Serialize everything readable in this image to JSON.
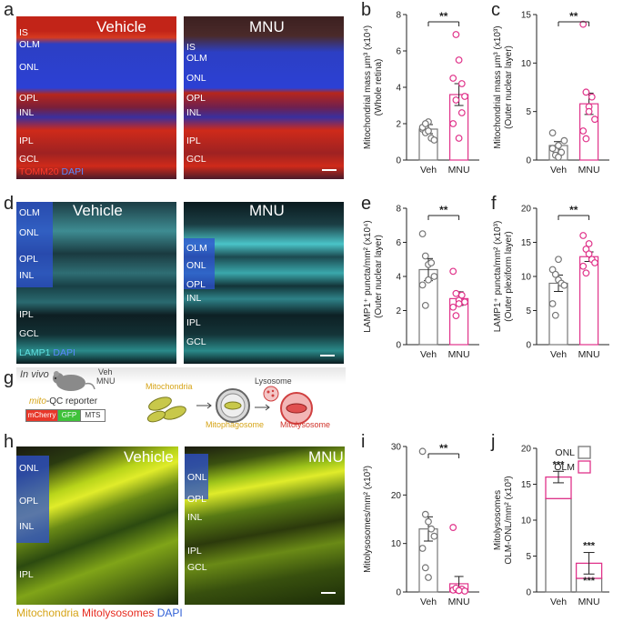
{
  "panels": {
    "a": {
      "label": "a",
      "left_title": "Vehicle",
      "right_title": "MNU",
      "left_layers": [
        "IS",
        "OLM",
        "ONL",
        "OPL",
        "INL",
        "IPL",
        "GCL"
      ],
      "right_layers": [
        "IS",
        "OLM",
        "ONL",
        "OPL",
        "INL",
        "IPL",
        "GCL"
      ],
      "stain_1": "TOMM20",
      "stain_2": "DAPI"
    },
    "b": {
      "label": "b"
    },
    "c": {
      "label": "c"
    },
    "d": {
      "label": "d",
      "left_title": "Vehicle",
      "right_title": "MNU",
      "left_layers": [
        "OLM",
        "ONL",
        "OPL",
        "INL",
        "IPL",
        "GCL"
      ],
      "right_layers": [
        "OLM",
        "ONL",
        "OPL",
        "INL",
        "IPL",
        "GCL"
      ],
      "stain_1": "LAMP1",
      "stain_2": "DAPI"
    },
    "e": {
      "label": "e"
    },
    "f": {
      "label": "f"
    },
    "g": {
      "label": "g",
      "in_vivo": "In vivo",
      "veh": "Veh",
      "mnu": "MNU",
      "reporter_prefix": "mito",
      "reporter_suffix": "-QC reporter",
      "box_mcherry": "mCherry",
      "box_gfp": "GFP",
      "box_mts": "MTS",
      "mitochondria": "Mitochondria",
      "lysosome": "Lysosome",
      "mitophagosome": "Mitophagosome",
      "mitolysosome": "Mitolysosome"
    },
    "h": {
      "label": "h",
      "left_title": "Vehicle",
      "right_title": "MNU",
      "left_layers": [
        "ONL",
        "OPL",
        "INL",
        "IPL"
      ],
      "right_layers": [
        "ONL",
        "OPL",
        "INL",
        "IPL",
        "GCL"
      ],
      "stain_1": "Mitochondria",
      "stain_2": "Mitolysosomes",
      "stain_3": "DAPI"
    },
    "i": {
      "label": "i"
    },
    "j": {
      "label": "j"
    }
  },
  "colors": {
    "veh": "#777777",
    "mnu": "#e0338a",
    "tomm20": "#e62a1e",
    "dapi": "#2f5fd6",
    "lamp1": "#5fe1e1",
    "mito": "#d6a417",
    "mitolyso": "#e62a1e"
  },
  "chart_data": [
    {
      "id": "b",
      "type": "bar",
      "categories": [
        "Veh",
        "MNU"
      ],
      "ylabel": "Mitochondrial mass μm³ (x10⁴)",
      "ylabel_sub": "(Whole retina)",
      "ylim": [
        0,
        8
      ],
      "yticks": [
        0,
        2,
        4,
        6,
        8
      ],
      "means": [
        1.7,
        3.6
      ],
      "errors": [
        0.25,
        0.6
      ],
      "points": [
        [
          1.7,
          1.5,
          2.1,
          1.2,
          1.1,
          1.8,
          2.0,
          1.6
        ],
        [
          2.0,
          3.3,
          1.2,
          4.2,
          3.5,
          4.5,
          6.9,
          5.5,
          2.6
        ]
      ],
      "sig": "**"
    },
    {
      "id": "c",
      "type": "bar",
      "categories": [
        "Veh",
        "MNU"
      ],
      "ylabel": "Mitochondrial mass μm³ (x10³)",
      "ylabel_sub": "(Outer nuclear layer)",
      "ylim": [
        0,
        15
      ],
      "yticks": [
        0,
        5,
        10,
        15
      ],
      "means": [
        1.5,
        5.8
      ],
      "errors": [
        0.4,
        1.1
      ],
      "points": [
        [
          2.8,
          1.0,
          1.5,
          0.8,
          2.0,
          1.2,
          0.5,
          0.3
        ],
        [
          14.0,
          7.0,
          5.5,
          6.5,
          4.2,
          3.0,
          2.2,
          5.0
        ]
      ],
      "sig": "**"
    },
    {
      "id": "e",
      "type": "bar",
      "categories": [
        "Veh",
        "MNU"
      ],
      "ylabel": "LAMP1⁺ puncta/mm² (x10⁴)",
      "ylabel_sub": "(Outer nuclear layer)",
      "ylim": [
        0,
        8
      ],
      "yticks": [
        0,
        2,
        4,
        6,
        8
      ],
      "means": [
        4.4,
        2.7
      ],
      "errors": [
        0.65,
        0.4
      ],
      "points": [
        [
          6.5,
          5.2,
          4.7,
          4.8,
          4.0,
          3.5,
          2.3,
          3.8
        ],
        [
          4.3,
          3.0,
          2.6,
          2.9,
          2.5,
          2.2,
          1.7,
          2.4
        ]
      ],
      "sig": "**"
    },
    {
      "id": "f",
      "type": "bar",
      "categories": [
        "Veh",
        "MNU"
      ],
      "ylabel": "LAMP1⁺ puncta/mm² (x10³)",
      "ylabel_sub": "(Outer plexiform layer)",
      "ylim": [
        0,
        20
      ],
      "yticks": [
        0,
        5,
        10,
        15,
        20
      ],
      "means": [
        9.0,
        12.9
      ],
      "errors": [
        1.2,
        0.7
      ],
      "points": [
        [
          11.0,
          10.3,
          9.5,
          9.0,
          8.7,
          6.0,
          4.3,
          12.5
        ],
        [
          16.0,
          14.0,
          13.3,
          12.5,
          12.0,
          11.5,
          10.5,
          14.8
        ]
      ],
      "sig": "**"
    },
    {
      "id": "i",
      "type": "bar",
      "categories": [
        "Veh",
        "MNU"
      ],
      "ylabel": "Mitolysosomes/mm² (x10³)",
      "ylim": [
        0,
        30
      ],
      "yticks": [
        0,
        10,
        20,
        30
      ],
      "means": [
        13.0,
        1.7
      ],
      "errors": [
        2.5,
        1.5
      ],
      "points": [
        [
          29.0,
          16.0,
          14.5,
          13.0,
          11.5,
          9.0,
          5.0,
          3.0
        ],
        [
          13.3,
          0.5,
          0.3,
          0.6,
          0.2,
          0.4,
          0.8,
          0.3
        ]
      ],
      "sig": "**"
    },
    {
      "id": "j",
      "type": "stacked-bar",
      "categories": [
        "Veh",
        "MNU"
      ],
      "ylabel": "Mitolysosomes",
      "ylabel_sub": "OLM-ONL/mm² (x10³)",
      "ylim": [
        0,
        20
      ],
      "yticks": [
        0,
        5,
        10,
        15,
        20
      ],
      "series": [
        {
          "name": "ONL",
          "values": [
            13.0,
            1.9
          ]
        },
        {
          "name": "OLM",
          "values": [
            3.0,
            2.1
          ]
        }
      ],
      "errors": [
        [
          13.0,
          2.0
        ],
        [
          1.9,
          1.5
        ]
      ],
      "total_err": [
        [
          16.0,
          0.8
        ],
        [
          4.0,
          1.5
        ]
      ],
      "sig_top": [
        "***",
        "***"
      ],
      "sig_inner": [
        "",
        "***"
      ]
    }
  ]
}
